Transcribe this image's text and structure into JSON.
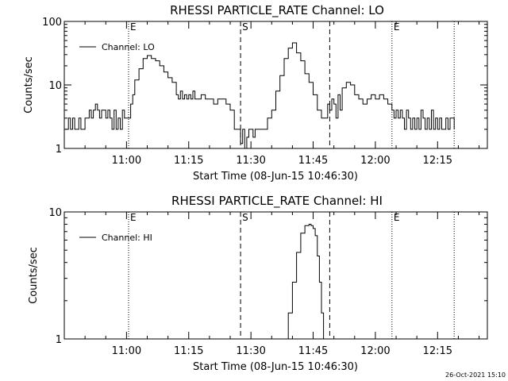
{
  "footer": {
    "timestamp": "26-Oct-2021 15:10"
  },
  "chart_data": [
    {
      "type": "line",
      "title": "RHESSI PARTICLE_RATE Channel: LO",
      "xlabel": "Start Time (08-Jun-15 10:46:30)",
      "ylabel": "Counts/sec",
      "x_unit": "minutes since 10:46:30",
      "xlim": [
        0,
        102
      ],
      "ylim": [
        1,
        100
      ],
      "y_scale": "log",
      "x_ticks": [
        {
          "v": 15,
          "label": "11:00"
        },
        {
          "v": 30,
          "label": "11:15"
        },
        {
          "v": 45,
          "label": "11:30"
        },
        {
          "v": 60,
          "label": "11:45"
        },
        {
          "v": 75,
          "label": "12:00"
        },
        {
          "v": 90,
          "label": "12:15"
        }
      ],
      "y_ticks": [
        {
          "v": 1,
          "label": "1"
        },
        {
          "v": 10,
          "label": "10"
        },
        {
          "v": 100,
          "label": "100"
        }
      ],
      "markers": [
        {
          "x": 15.5,
          "style": "dotted",
          "label": "E"
        },
        {
          "x": 42.5,
          "style": "dashed",
          "label": "S"
        },
        {
          "x": 64,
          "style": "dashed",
          "label": ""
        },
        {
          "x": 79,
          "style": "dotted",
          "label": "E"
        },
        {
          "x": 94,
          "style": "dotted",
          "label": ""
        }
      ],
      "legend": {
        "position": "top-left",
        "entries": [
          "Channel: LO"
        ]
      },
      "series": [
        {
          "name": "Channel: LO",
          "x": [
            0.3,
            1,
            1.5,
            2,
            2.5,
            3,
            3.5,
            4,
            4.5,
            5,
            5.5,
            6,
            6.5,
            7,
            7.5,
            8,
            8.5,
            9,
            9.5,
            10,
            10.5,
            11,
            11.5,
            12,
            12.5,
            13,
            13.5,
            14,
            14.5,
            15,
            15.5,
            16,
            16.5,
            17,
            18,
            19,
            20,
            21,
            22,
            23,
            24,
            25,
            26,
            27,
            27.5,
            28,
            28.5,
            29,
            29.5,
            30,
            30.5,
            31,
            31.5,
            32,
            33,
            34,
            35,
            36,
            37,
            38,
            39,
            40,
            40.5,
            41,
            41.5,
            42,
            42.5,
            43,
            43.5,
            44,
            44.5,
            45,
            45.5,
            46,
            47,
            48,
            49,
            50,
            51,
            52,
            53,
            54,
            55,
            56,
            57,
            58,
            59,
            60,
            61,
            62,
            63,
            63.5,
            64,
            64.5,
            65,
            65.5,
            66,
            66.5,
            67,
            68,
            69,
            70,
            71,
            72,
            73,
            74,
            75,
            76,
            77,
            78,
            79,
            79.5,
            80,
            80.5,
            81,
            81.5,
            82,
            82.5,
            83,
            83.5,
            84,
            84.5,
            85,
            85.5,
            86,
            86.5,
            87,
            87.5,
            88,
            88.5,
            89,
            89.5,
            90,
            90.5,
            91,
            91.5,
            92,
            92.5,
            93,
            94
          ],
          "values": [
            2,
            3,
            2,
            3,
            2,
            2,
            3,
            2,
            2,
            3,
            3,
            4,
            3,
            4,
            5,
            4,
            3,
            4,
            4,
            3,
            4,
            3,
            2,
            4,
            2,
            3,
            2,
            4,
            3,
            3,
            3,
            5,
            7,
            12,
            18,
            26,
            29,
            26,
            24,
            20,
            16,
            13,
            11,
            7,
            6,
            8,
            6,
            7,
            6,
            7,
            6,
            8,
            6,
            6,
            7,
            6,
            6,
            5,
            6,
            6,
            5,
            4,
            4,
            2,
            2,
            2,
            1.2,
            2,
            1,
            1.5,
            2,
            2,
            1.5,
            2,
            2,
            2,
            3,
            4,
            8,
            14,
            26,
            38,
            46,
            32,
            24,
            15,
            11,
            7,
            4,
            3,
            3,
            5,
            4,
            6,
            5,
            3,
            7,
            4,
            9,
            11,
            10,
            7,
            6,
            5,
            6,
            7,
            6,
            7,
            6,
            5,
            4,
            3,
            4,
            3,
            4,
            3,
            2,
            4,
            3,
            2,
            3,
            2,
            3,
            2,
            4,
            3,
            2,
            3,
            2,
            4,
            2,
            3,
            2,
            3,
            2,
            2,
            3,
            2,
            3,
            2
          ]
        }
      ]
    },
    {
      "type": "line",
      "title": "RHESSI PARTICLE_RATE Channel: HI",
      "xlabel": "Start Time (08-Jun-15 10:46:30)",
      "ylabel": "Counts/sec",
      "x_unit": "minutes since 10:46:30",
      "xlim": [
        0,
        102
      ],
      "ylim": [
        1,
        10
      ],
      "y_scale": "log",
      "x_ticks": [
        {
          "v": 15,
          "label": "11:00"
        },
        {
          "v": 30,
          "label": "11:15"
        },
        {
          "v": 45,
          "label": "11:30"
        },
        {
          "v": 60,
          "label": "11:45"
        },
        {
          "v": 75,
          "label": "12:00"
        },
        {
          "v": 90,
          "label": "12:15"
        }
      ],
      "y_ticks": [
        {
          "v": 1,
          "label": "1"
        },
        {
          "v": 10,
          "label": "10"
        }
      ],
      "markers": [
        {
          "x": 15.5,
          "style": "dotted",
          "label": "E"
        },
        {
          "x": 42.5,
          "style": "dashed",
          "label": "S"
        },
        {
          "x": 64,
          "style": "dashed",
          "label": ""
        },
        {
          "x": 79,
          "style": "dotted",
          "label": "E"
        },
        {
          "x": 94,
          "style": "dotted",
          "label": ""
        }
      ],
      "legend": {
        "position": "top-left",
        "entries": [
          "Channel: HI"
        ]
      },
      "series": [
        {
          "name": "Channel: HI",
          "x": [
            53.2,
            54,
            55,
            56,
            57,
            58,
            59,
            59.5,
            60,
            60.5,
            61,
            61.5,
            62,
            62.5
          ],
          "values": [
            1,
            1.6,
            2.8,
            4.8,
            6.8,
            7.8,
            8,
            7.8,
            7.4,
            6.5,
            4.5,
            2.8,
            1.6,
            1
          ]
        }
      ]
    }
  ]
}
